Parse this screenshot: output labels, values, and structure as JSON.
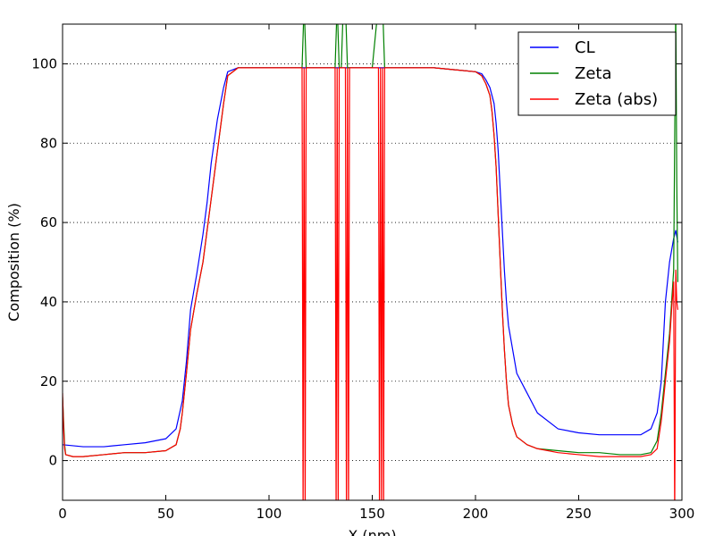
{
  "chart_data": {
    "type": "line",
    "xlabel": "X (nm)",
    "ylabel": "Composition (%)",
    "xlim": [
      0,
      300
    ],
    "ylim": [
      -10,
      110
    ],
    "x_ticks": [
      0,
      50,
      100,
      150,
      200,
      250,
      300
    ],
    "y_ticks": [
      0,
      20,
      40,
      60,
      80,
      100
    ],
    "grid": "horizontal dotted",
    "legend_position": "top-right",
    "series": [
      {
        "name": "CL",
        "color": "#0000ff",
        "x": [
          0,
          10,
          20,
          30,
          40,
          50,
          55,
          58,
          60,
          62,
          65,
          68,
          70,
          72,
          75,
          78,
          80,
          85,
          90,
          100,
          120,
          140,
          160,
          180,
          200,
          203,
          205,
          207,
          209,
          210,
          211,
          212,
          213,
          214,
          215,
          216,
          218,
          220,
          225,
          230,
          240,
          250,
          260,
          270,
          280,
          285,
          288,
          290,
          291,
          292,
          294,
          296,
          297,
          298
        ],
        "y": [
          4,
          3.5,
          3.5,
          4,
          4.5,
          5.5,
          8,
          15,
          25,
          38,
          47,
          57,
          65,
          75,
          86,
          94,
          98,
          99,
          99,
          99,
          99,
          99,
          99,
          99,
          98,
          97.5,
          96,
          94,
          90,
          85,
          78,
          68,
          58,
          48,
          40,
          34,
          28,
          22,
          17,
          12,
          8,
          7,
          6.5,
          6.5,
          6.5,
          8,
          12,
          20,
          30,
          40,
          50,
          56,
          58,
          55
        ]
      },
      {
        "name": "Zeta",
        "color": "#008000",
        "x": [
          0,
          0.5,
          1,
          1.5,
          5,
          10,
          20,
          30,
          40,
          50,
          55,
          57,
          58,
          60,
          62,
          65,
          68,
          70,
          72,
          75,
          78,
          80,
          85,
          90,
          100,
          116,
          117,
          118,
          132,
          133,
          134,
          135,
          136,
          137,
          138,
          139,
          140,
          150,
          153,
          154,
          155,
          156,
          160,
          180,
          200,
          203,
          205,
          207,
          208,
          209,
          210,
          211,
          212,
          213,
          214,
          215,
          216,
          218,
          220,
          225,
          230,
          240,
          250,
          260,
          270,
          280,
          285,
          288,
          290,
          292,
          294,
          295,
          296,
          297,
          297.5,
          298
        ],
        "y": [
          16,
          10,
          4,
          1.5,
          1,
          1,
          1.5,
          2,
          2,
          2.5,
          4,
          8,
          12,
          22,
          33,
          42,
          50,
          58,
          66,
          78,
          90,
          97,
          99,
          99,
          99,
          99,
          115,
          99,
          99,
          115,
          99,
          99,
          115,
          115,
          99,
          99,
          99,
          99,
          115,
          115,
          115,
          99,
          99,
          99,
          98,
          97,
          95,
          92,
          88,
          82,
          74,
          62,
          50,
          38,
          28,
          20,
          14,
          9,
          6,
          4,
          3,
          2.5,
          2,
          2,
          1.5,
          1.5,
          2,
          5,
          12,
          22,
          32,
          40,
          48,
          115,
          70,
          45
        ]
      },
      {
        "name": "Zeta (abs)",
        "color": "#ff0000",
        "x": [
          0,
          0.5,
          1,
          1.5,
          5,
          10,
          20,
          30,
          40,
          50,
          55,
          57,
          58,
          60,
          62,
          65,
          68,
          70,
          72,
          75,
          78,
          80,
          85,
          90,
          100,
          116,
          116.5,
          117,
          117.5,
          118,
          132,
          132.5,
          133,
          133.5,
          134,
          137,
          137.5,
          138,
          138.5,
          139,
          150,
          153,
          153.5,
          154,
          154.5,
          155,
          155.5,
          156,
          160,
          180,
          200,
          203,
          205,
          207,
          208,
          209,
          210,
          211,
          212,
          213,
          214,
          215,
          216,
          218,
          220,
          225,
          230,
          240,
          250,
          260,
          270,
          280,
          285,
          288,
          290,
          292,
          294,
          295,
          296,
          296.5,
          297,
          297.5,
          298
        ],
        "y": [
          17,
          8,
          3,
          1.5,
          1,
          1,
          1.5,
          2,
          2,
          2.5,
          4,
          8,
          12,
          22,
          33,
          42,
          50,
          58,
          66,
          78,
          90,
          97,
          99,
          99,
          99,
          99,
          -15,
          99,
          -15,
          99,
          99,
          -15,
          99,
          -15,
          99,
          99,
          -15,
          99,
          -15,
          99,
          99,
          99,
          -15,
          99,
          -15,
          99,
          -15,
          99,
          99,
          99,
          98,
          97,
          95,
          92,
          88,
          82,
          74,
          62,
          50,
          38,
          28,
          20,
          14,
          9,
          6,
          4,
          3,
          2,
          1.5,
          1,
          1,
          1,
          1.5,
          3,
          10,
          20,
          30,
          38,
          45,
          -15,
          48,
          40,
          38
        ]
      }
    ]
  }
}
